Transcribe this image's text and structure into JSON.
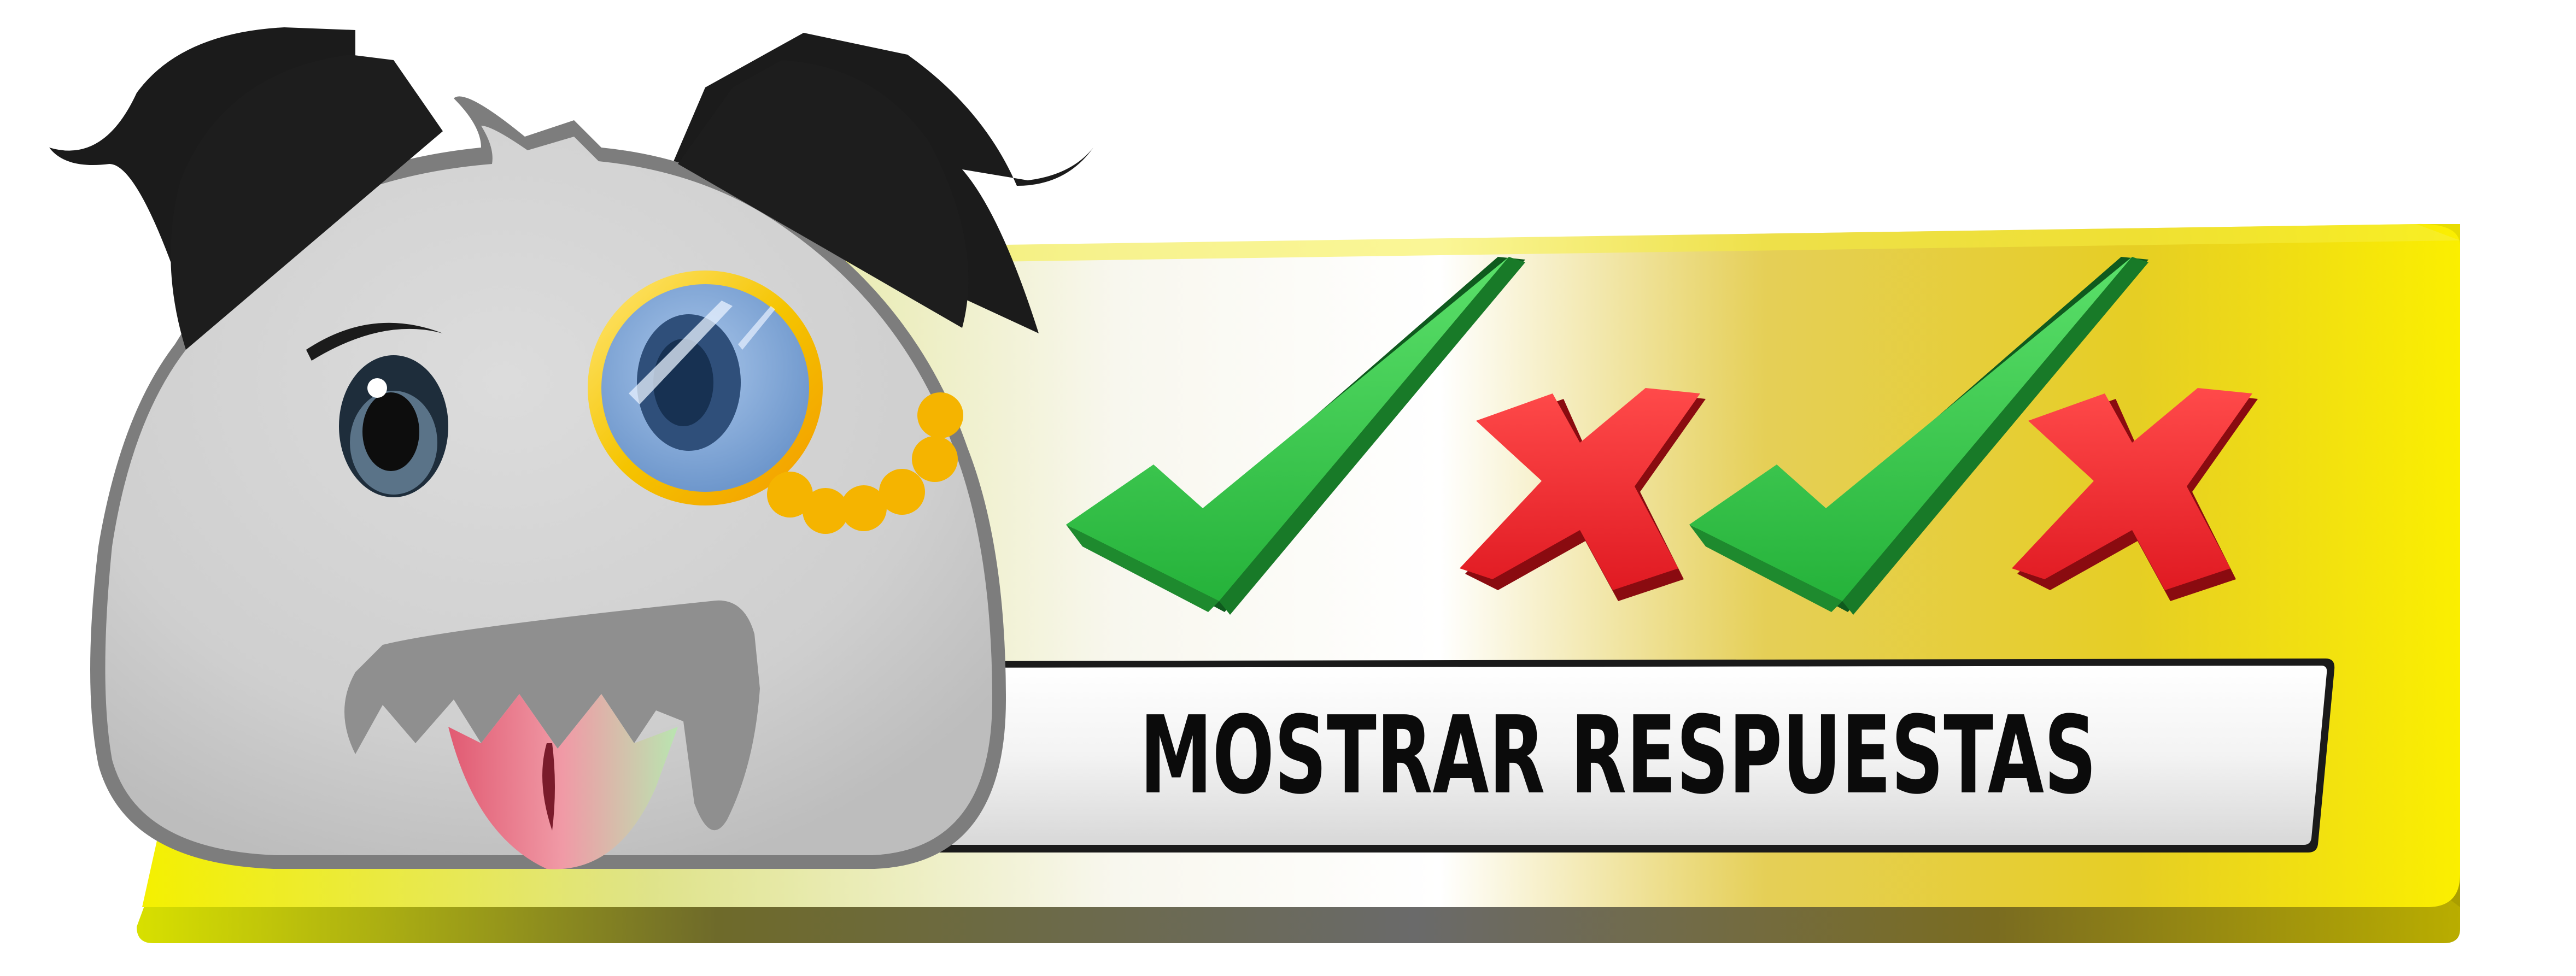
{
  "button": {
    "label": "MOSTRAR RESPUESTAS"
  },
  "icons": {
    "mascot": "monocle-mascot-icon",
    "marks": [
      "checkmark-icon",
      "cross-icon",
      "checkmark-icon",
      "cross-icon"
    ]
  },
  "colors": {
    "panel_yellow": "#f1e400",
    "check_green": "#2fbf3f",
    "cross_red": "#f0242a",
    "label_bg": "#f2f2f2",
    "text": "#0b0b0b"
  }
}
